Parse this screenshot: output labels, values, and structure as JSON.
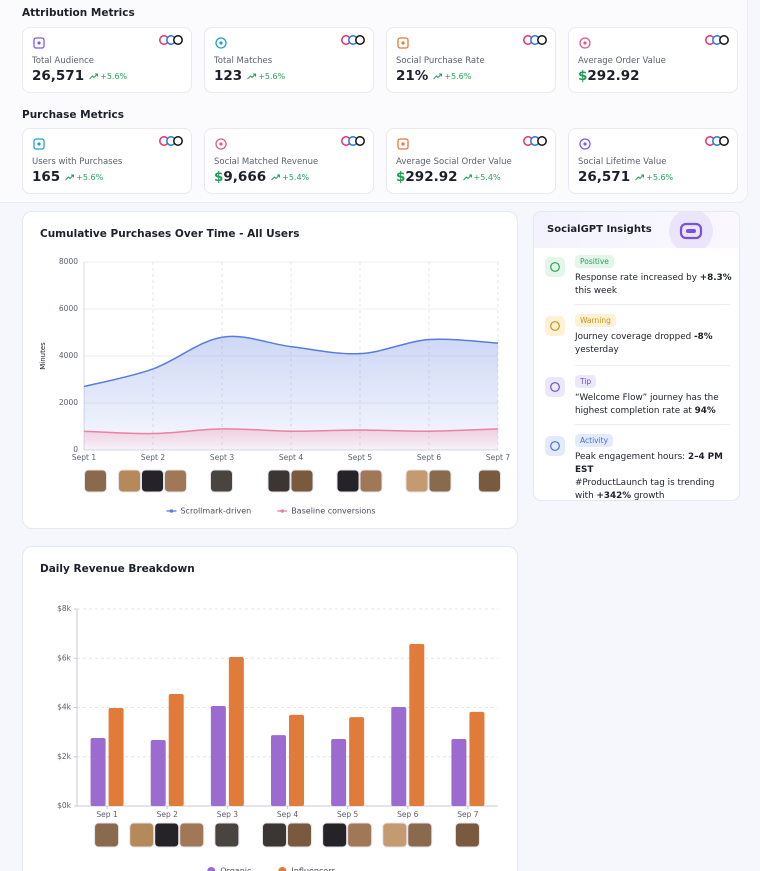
{
  "sections": [
    {
      "title": "Attribution Metrics",
      "cards": [
        {
          "label": "Total Audience",
          "value": "26,571",
          "change": "+5.6%"
        },
        {
          "label": "Total Matches",
          "value": "123",
          "change": "+5.6%"
        },
        {
          "label": "Social Purchase Rate",
          "value": "21%",
          "change": "+5.6%"
        },
        {
          "label": "Average Order Value",
          "currency": "$",
          "value": "292.92"
        }
      ]
    },
    {
      "title": "Purchase Metrics",
      "cards": [
        {
          "label": "Users with Purchases",
          "value": "165",
          "change": "+5.6%"
        },
        {
          "label": "Social Matched Revenue",
          "currency": "$",
          "value": "9,666",
          "change": "+5.4%"
        },
        {
          "label": "Average Social Order Value",
          "currency": "$",
          "value": "292.92",
          "change": "+5.4%"
        },
        {
          "label": "Social Lifetime Value",
          "value": "26,571",
          "change": "+5.6%"
        }
      ]
    }
  ],
  "chart_data": [
    {
      "type": "area",
      "title": "Cumulative Purchases Over Time - All Users",
      "y_label": "Minutes",
      "categories": [
        "Sept 1",
        "Sept 2",
        "Sept 3",
        "Sept 4",
        "Sept 5",
        "Sept 6",
        "Sept 7"
      ],
      "series": [
        {
          "name": "Scrollmark-driven",
          "color": "#5b7be0",
          "values": [
            2700,
            3450,
            4800,
            4400,
            4100,
            4700,
            4550
          ]
        },
        {
          "name": "Baseline conversions",
          "color": "#f07fa0",
          "values": [
            800,
            700,
            900,
            800,
            850,
            800,
            900
          ]
        }
      ],
      "ylim": [
        0,
        8000
      ],
      "yticks": [
        0,
        2000,
        4000,
        6000,
        8000
      ],
      "grid": true,
      "legend": "bottom"
    },
    {
      "type": "bar",
      "title": "Daily Revenue Breakdown",
      "categories": [
        "Sep 1",
        "Sep 2",
        "Sep 3",
        "Sep 4",
        "Sep 5",
        "Sep 6",
        "Sep 7"
      ],
      "series": [
        {
          "name": "Organic",
          "color": "#9b6bd0",
          "values": [
            2760,
            2680,
            4060,
            2880,
            2720,
            4020,
            2720
          ]
        },
        {
          "name": "Influencers",
          "color": "#e07b39",
          "values": [
            3980,
            4550,
            6050,
            3700,
            3610,
            6580,
            3820
          ]
        }
      ],
      "ylim": [
        0,
        8000
      ],
      "yticks": [
        {
          "value": 0,
          "label": "$0k"
        },
        {
          "value": 2000,
          "label": "$2k"
        },
        {
          "value": 4000,
          "label": "$4k"
        },
        {
          "value": 6000,
          "label": "$6k"
        },
        {
          "value": 8000,
          "label": "$8k"
        }
      ],
      "grid": true,
      "legend": "bottom"
    }
  ],
  "insights": {
    "title": "SocialGPT Insights",
    "items": [
      {
        "tag": "Positive",
        "paragraphs": [
          [
            {
              "t": "Response rate increased by "
            },
            {
              "b": "+8.3%"
            },
            {
              "t": " this week"
            }
          ]
        ]
      },
      {
        "tag": "Warning",
        "paragraphs": [
          [
            {
              "t": "Journey coverage dropped "
            },
            {
              "b": "-8%"
            },
            {
              "t": " yesterday"
            }
          ]
        ]
      },
      {
        "tag": "Tip",
        "paragraphs": [
          [
            {
              "t": "“Welcome Flow” journey has the highest completion rate at "
            },
            {
              "b": "94%"
            }
          ]
        ]
      },
      {
        "tag": "Activity",
        "paragraphs": [
          [
            {
              "t": "Peak engagement hours: "
            },
            {
              "b": "2–4 PM EST"
            }
          ],
          [
            {
              "t": "#ProductLaunch tag is trending with "
            },
            {
              "b": "+342%"
            },
            {
              "t": " growth"
            }
          ]
        ]
      }
    ]
  }
}
